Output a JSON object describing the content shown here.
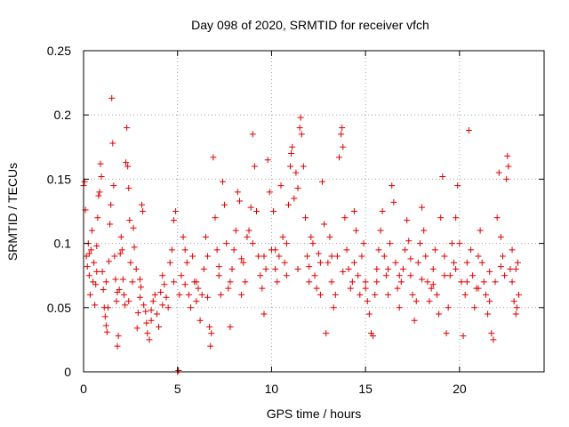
{
  "chart_data": {
    "type": "scatter",
    "title": "Day 098 of 2020, SRMTID for receiver vfch",
    "xlabel": "GPS time / hours",
    "ylabel": "SRMTID / TECUs",
    "xlim": [
      0,
      24.5
    ],
    "ylim": [
      0,
      0.25
    ],
    "x_ticks": [
      0,
      5,
      10,
      15,
      20
    ],
    "x_tick_labels": [
      "0",
      "5",
      "10",
      "15",
      "20"
    ],
    "y_ticks": [
      0,
      0.05,
      0.1,
      0.15,
      0.2,
      0.25
    ],
    "y_tick_labels": [
      "0",
      "0.05",
      "0.1",
      "0.15",
      "0.2",
      "0.25"
    ],
    "grid": true,
    "marker": "plus",
    "color": "#e00000",
    "series": [
      {
        "name": "SRMTID",
        "points": [
          [
            0.0,
            0.145
          ],
          [
            0.05,
            0.148
          ],
          [
            0.1,
            0.126
          ],
          [
            0.15,
            0.09
          ],
          [
            0.2,
            0.082
          ],
          [
            0.25,
            0.1
          ],
          [
            0.3,
            0.075
          ],
          [
            0.35,
            0.06
          ],
          [
            0.4,
            0.095
          ],
          [
            0.45,
            0.11
          ],
          [
            0.5,
            0.07
          ],
          [
            0.55,
            0.085
          ],
          [
            0.6,
            0.052
          ],
          [
            0.65,
            0.068
          ],
          [
            0.7,
            0.098
          ],
          [
            0.75,
            0.12
          ],
          [
            0.8,
            0.137
          ],
          [
            0.85,
            0.14
          ],
          [
            0.9,
            0.162
          ],
          [
            0.95,
            0.152
          ],
          [
            1.0,
            0.078
          ],
          [
            1.05,
            0.064
          ],
          [
            1.1,
            0.05
          ],
          [
            1.15,
            0.043
          ],
          [
            1.2,
            0.036
          ],
          [
            1.25,
            0.031
          ],
          [
            1.3,
            0.05
          ],
          [
            1.35,
            0.086
          ],
          [
            1.4,
            0.115
          ],
          [
            1.45,
            0.13
          ],
          [
            1.5,
            0.213
          ],
          [
            1.55,
            0.178
          ],
          [
            1.6,
            0.145
          ],
          [
            1.65,
            0.09
          ],
          [
            1.7,
            0.072
          ],
          [
            1.75,
            0.055
          ],
          [
            1.8,
            0.02
          ],
          [
            1.85,
            0.028
          ],
          [
            1.9,
            0.064
          ],
          [
            1.95,
            0.092
          ],
          [
            2.0,
            0.105
          ],
          [
            2.05,
            0.095
          ],
          [
            2.1,
            0.072
          ],
          [
            2.15,
            0.06
          ],
          [
            2.2,
            0.052
          ],
          [
            2.25,
            0.163
          ],
          [
            2.3,
            0.19
          ],
          [
            2.35,
            0.16
          ],
          [
            2.4,
            0.143
          ],
          [
            2.45,
            0.118
          ],
          [
            2.5,
            0.085
          ],
          [
            2.6,
            0.07
          ],
          [
            2.65,
            0.112
          ],
          [
            2.7,
            0.097
          ],
          [
            2.8,
            0.08
          ],
          [
            2.85,
            0.034
          ],
          [
            2.9,
            0.046
          ],
          [
            3.0,
            0.058
          ],
          [
            3.05,
            0.066
          ],
          [
            3.1,
            0.13
          ],
          [
            3.15,
            0.125
          ],
          [
            3.2,
            0.052
          ],
          [
            3.3,
            0.047
          ],
          [
            3.35,
            0.038
          ],
          [
            3.4,
            0.03
          ],
          [
            3.5,
            0.025
          ],
          [
            3.6,
            0.04
          ],
          [
            3.7,
            0.055
          ],
          [
            3.8,
            0.06
          ],
          [
            3.9,
            0.045
          ],
          [
            4.0,
            0.035
          ],
          [
            4.1,
            0.062
          ],
          [
            4.2,
            0.075
          ],
          [
            4.3,
            0.068
          ],
          [
            4.4,
            0.058
          ],
          [
            4.5,
            0.05
          ],
          [
            4.6,
            0.085
          ],
          [
            4.7,
            0.095
          ],
          [
            4.8,
            0.118
          ],
          [
            4.9,
            0.125
          ],
          [
            5.0,
            0.0
          ],
          [
            5.05,
            0.001
          ],
          [
            5.1,
            0.06
          ],
          [
            5.2,
            0.075
          ],
          [
            5.3,
            0.105
          ],
          [
            5.4,
            0.095
          ],
          [
            5.5,
            0.085
          ],
          [
            5.6,
            0.06
          ],
          [
            5.7,
            0.05
          ],
          [
            5.8,
            0.09
          ],
          [
            5.9,
            0.07
          ],
          [
            6.0,
            0.055
          ],
          [
            6.1,
            0.065
          ],
          [
            6.2,
            0.04
          ],
          [
            6.3,
            0.06
          ],
          [
            6.4,
            0.08
          ],
          [
            6.5,
            0.105
          ],
          [
            6.6,
            0.09
          ],
          [
            6.7,
            0.035
          ],
          [
            6.75,
            0.02
          ],
          [
            6.8,
            0.03
          ],
          [
            6.9,
            0.167
          ],
          [
            7.0,
            0.12
          ],
          [
            7.1,
            0.095
          ],
          [
            7.2,
            0.075
          ],
          [
            7.3,
            0.06
          ],
          [
            7.4,
            0.148
          ],
          [
            7.5,
            0.13
          ],
          [
            7.6,
            0.1
          ],
          [
            7.7,
            0.065
          ],
          [
            7.8,
            0.035
          ],
          [
            7.9,
            0.08
          ],
          [
            8.0,
            0.095
          ],
          [
            8.1,
            0.11
          ],
          [
            8.2,
            0.14
          ],
          [
            8.3,
            0.133
          ],
          [
            8.4,
            0.06
          ],
          [
            8.5,
            0.085
          ],
          [
            8.6,
            0.07
          ],
          [
            8.7,
            0.105
          ],
          [
            8.8,
            0.11
          ],
          [
            8.9,
            0.128
          ],
          [
            9.0,
            0.185
          ],
          [
            9.1,
            0.16
          ],
          [
            9.2,
            0.125
          ],
          [
            9.3,
            0.09
          ],
          [
            9.4,
            0.075
          ],
          [
            9.5,
            0.065
          ],
          [
            9.6,
            0.045
          ],
          [
            9.7,
            0.08
          ],
          [
            9.8,
            0.165
          ],
          [
            9.9,
            0.14
          ],
          [
            10.0,
            0.095
          ],
          [
            10.1,
            0.125
          ],
          [
            10.2,
            0.08
          ],
          [
            10.3,
            0.07
          ],
          [
            10.4,
            0.09
          ],
          [
            10.5,
            0.145
          ],
          [
            10.6,
            0.105
          ],
          [
            10.7,
            0.085
          ],
          [
            10.8,
            0.1
          ],
          [
            10.9,
            0.13
          ],
          [
            11.0,
            0.16
          ],
          [
            11.05,
            0.17
          ],
          [
            11.1,
            0.175
          ],
          [
            11.2,
            0.135
          ],
          [
            11.3,
            0.155
          ],
          [
            11.4,
            0.143
          ],
          [
            11.5,
            0.19
          ],
          [
            11.55,
            0.198
          ],
          [
            11.6,
            0.185
          ],
          [
            11.7,
            0.16
          ],
          [
            11.8,
            0.12
          ],
          [
            11.9,
            0.09
          ],
          [
            12.0,
            0.082
          ],
          [
            12.1,
            0.105
          ],
          [
            12.2,
            0.1
          ],
          [
            12.3,
            0.075
          ],
          [
            12.4,
            0.065
          ],
          [
            12.5,
            0.092
          ],
          [
            12.6,
            0.06
          ],
          [
            12.7,
            0.148
          ],
          [
            12.8,
            0.115
          ],
          [
            12.9,
            0.03
          ],
          [
            13.0,
            0.085
          ],
          [
            13.1,
            0.105
          ],
          [
            13.2,
            0.07
          ],
          [
            13.3,
            0.05
          ],
          [
            13.4,
            0.06
          ],
          [
            13.5,
            0.09
          ],
          [
            13.6,
            0.167
          ],
          [
            13.7,
            0.185
          ],
          [
            13.75,
            0.19
          ],
          [
            13.8,
            0.175
          ],
          [
            13.9,
            0.12
          ],
          [
            14.0,
            0.095
          ],
          [
            14.1,
            0.08
          ],
          [
            14.2,
            0.065
          ],
          [
            14.3,
            0.07
          ],
          [
            14.4,
            0.125
          ],
          [
            14.5,
            0.11
          ],
          [
            14.6,
            0.075
          ],
          [
            14.7,
            0.06
          ],
          [
            14.8,
            0.09
          ],
          [
            14.9,
            0.1
          ],
          [
            15.0,
            0.07
          ],
          [
            15.1,
            0.055
          ],
          [
            15.2,
            0.045
          ],
          [
            15.3,
            0.03
          ],
          [
            15.4,
            0.028
          ],
          [
            15.5,
            0.06
          ],
          [
            15.6,
            0.08
          ],
          [
            15.7,
            0.095
          ],
          [
            15.8,
            0.11
          ],
          [
            15.9,
            0.125
          ],
          [
            16.0,
            0.09
          ],
          [
            16.1,
            0.075
          ],
          [
            16.2,
            0.06
          ],
          [
            16.3,
            0.1
          ],
          [
            16.4,
            0.145
          ],
          [
            16.5,
            0.132
          ],
          [
            16.6,
            0.085
          ],
          [
            16.7,
            0.065
          ],
          [
            16.8,
            0.05
          ],
          [
            16.9,
            0.07
          ],
          [
            17.0,
            0.08
          ],
          [
            17.1,
            0.095
          ],
          [
            17.2,
            0.118
          ],
          [
            17.3,
            0.102
          ],
          [
            17.4,
            0.075
          ],
          [
            17.5,
            0.06
          ],
          [
            17.6,
            0.04
          ],
          [
            17.7,
            0.055
          ],
          [
            17.8,
            0.085
          ],
          [
            17.9,
            0.1
          ],
          [
            18.0,
            0.128
          ],
          [
            18.1,
            0.11
          ],
          [
            18.2,
            0.09
          ],
          [
            18.3,
            0.07
          ],
          [
            18.4,
            0.055
          ],
          [
            18.5,
            0.065
          ],
          [
            18.6,
            0.08
          ],
          [
            18.7,
            0.095
          ],
          [
            18.8,
            0.06
          ],
          [
            18.9,
            0.045
          ],
          [
            19.0,
            0.12
          ],
          [
            19.1,
            0.152
          ],
          [
            19.2,
            0.09
          ],
          [
            19.3,
            0.03
          ],
          [
            19.4,
            0.05
          ],
          [
            19.5,
            0.075
          ],
          [
            19.6,
            0.1
          ],
          [
            19.7,
            0.085
          ],
          [
            19.8,
            0.12
          ],
          [
            19.9,
            0.145
          ],
          [
            20.0,
            0.1
          ],
          [
            20.1,
            0.07
          ],
          [
            20.2,
            0.028
          ],
          [
            20.3,
            0.06
          ],
          [
            20.4,
            0.085
          ],
          [
            20.5,
            0.188
          ],
          [
            20.6,
            0.095
          ],
          [
            20.7,
            0.075
          ],
          [
            20.8,
            0.05
          ],
          [
            20.9,
            0.065
          ],
          [
            21.0,
            0.09
          ],
          [
            21.1,
            0.11
          ],
          [
            21.2,
            0.085
          ],
          [
            21.3,
            0.07
          ],
          [
            21.4,
            0.06
          ],
          [
            21.5,
            0.045
          ],
          [
            21.6,
            0.055
          ],
          [
            21.7,
            0.03
          ],
          [
            21.8,
            0.025
          ],
          [
            21.9,
            0.07
          ],
          [
            22.0,
            0.12
          ],
          [
            22.1,
            0.155
          ],
          [
            22.2,
            0.105
          ],
          [
            22.3,
            0.09
          ],
          [
            22.4,
            0.075
          ],
          [
            22.5,
            0.15
          ],
          [
            22.55,
            0.168
          ],
          [
            22.6,
            0.16
          ],
          [
            22.7,
            0.08
          ],
          [
            22.8,
            0.07
          ],
          [
            22.9,
            0.055
          ],
          [
            23.0,
            0.045
          ],
          [
            23.05,
            0.05
          ],
          [
            23.1,
            0.085
          ],
          [
            23.15,
            0.06
          ],
          [
            0.3,
            0.092
          ],
          [
            0.7,
            0.078
          ],
          [
            1.2,
            0.07
          ],
          [
            1.8,
            0.062
          ],
          [
            2.4,
            0.055
          ],
          [
            3.0,
            0.072
          ],
          [
            3.6,
            0.048
          ],
          [
            4.2,
            0.052
          ],
          [
            4.8,
            0.07
          ],
          [
            5.4,
            0.068
          ],
          [
            6.0,
            0.07
          ],
          [
            6.6,
            0.058
          ],
          [
            7.2,
            0.082
          ],
          [
            7.8,
            0.07
          ],
          [
            8.4,
            0.088
          ],
          [
            9.0,
            0.1
          ],
          [
            9.6,
            0.09
          ],
          [
            10.2,
            0.095
          ],
          [
            10.8,
            0.075
          ],
          [
            11.4,
            0.08
          ],
          [
            12.0,
            0.07
          ],
          [
            12.6,
            0.085
          ],
          [
            13.2,
            0.09
          ],
          [
            13.8,
            0.078
          ],
          [
            14.4,
            0.085
          ],
          [
            15.0,
            0.065
          ],
          [
            15.6,
            0.07
          ],
          [
            16.2,
            0.08
          ],
          [
            16.8,
            0.075
          ],
          [
            17.4,
            0.088
          ],
          [
            18.0,
            0.072
          ],
          [
            18.6,
            0.068
          ],
          [
            19.2,
            0.075
          ],
          [
            19.8,
            0.08
          ],
          [
            20.4,
            0.07
          ],
          [
            21.0,
            0.065
          ],
          [
            21.6,
            0.078
          ],
          [
            22.2,
            0.082
          ],
          [
            22.8,
            0.095
          ],
          [
            23.0,
            0.08
          ]
        ]
      }
    ]
  }
}
